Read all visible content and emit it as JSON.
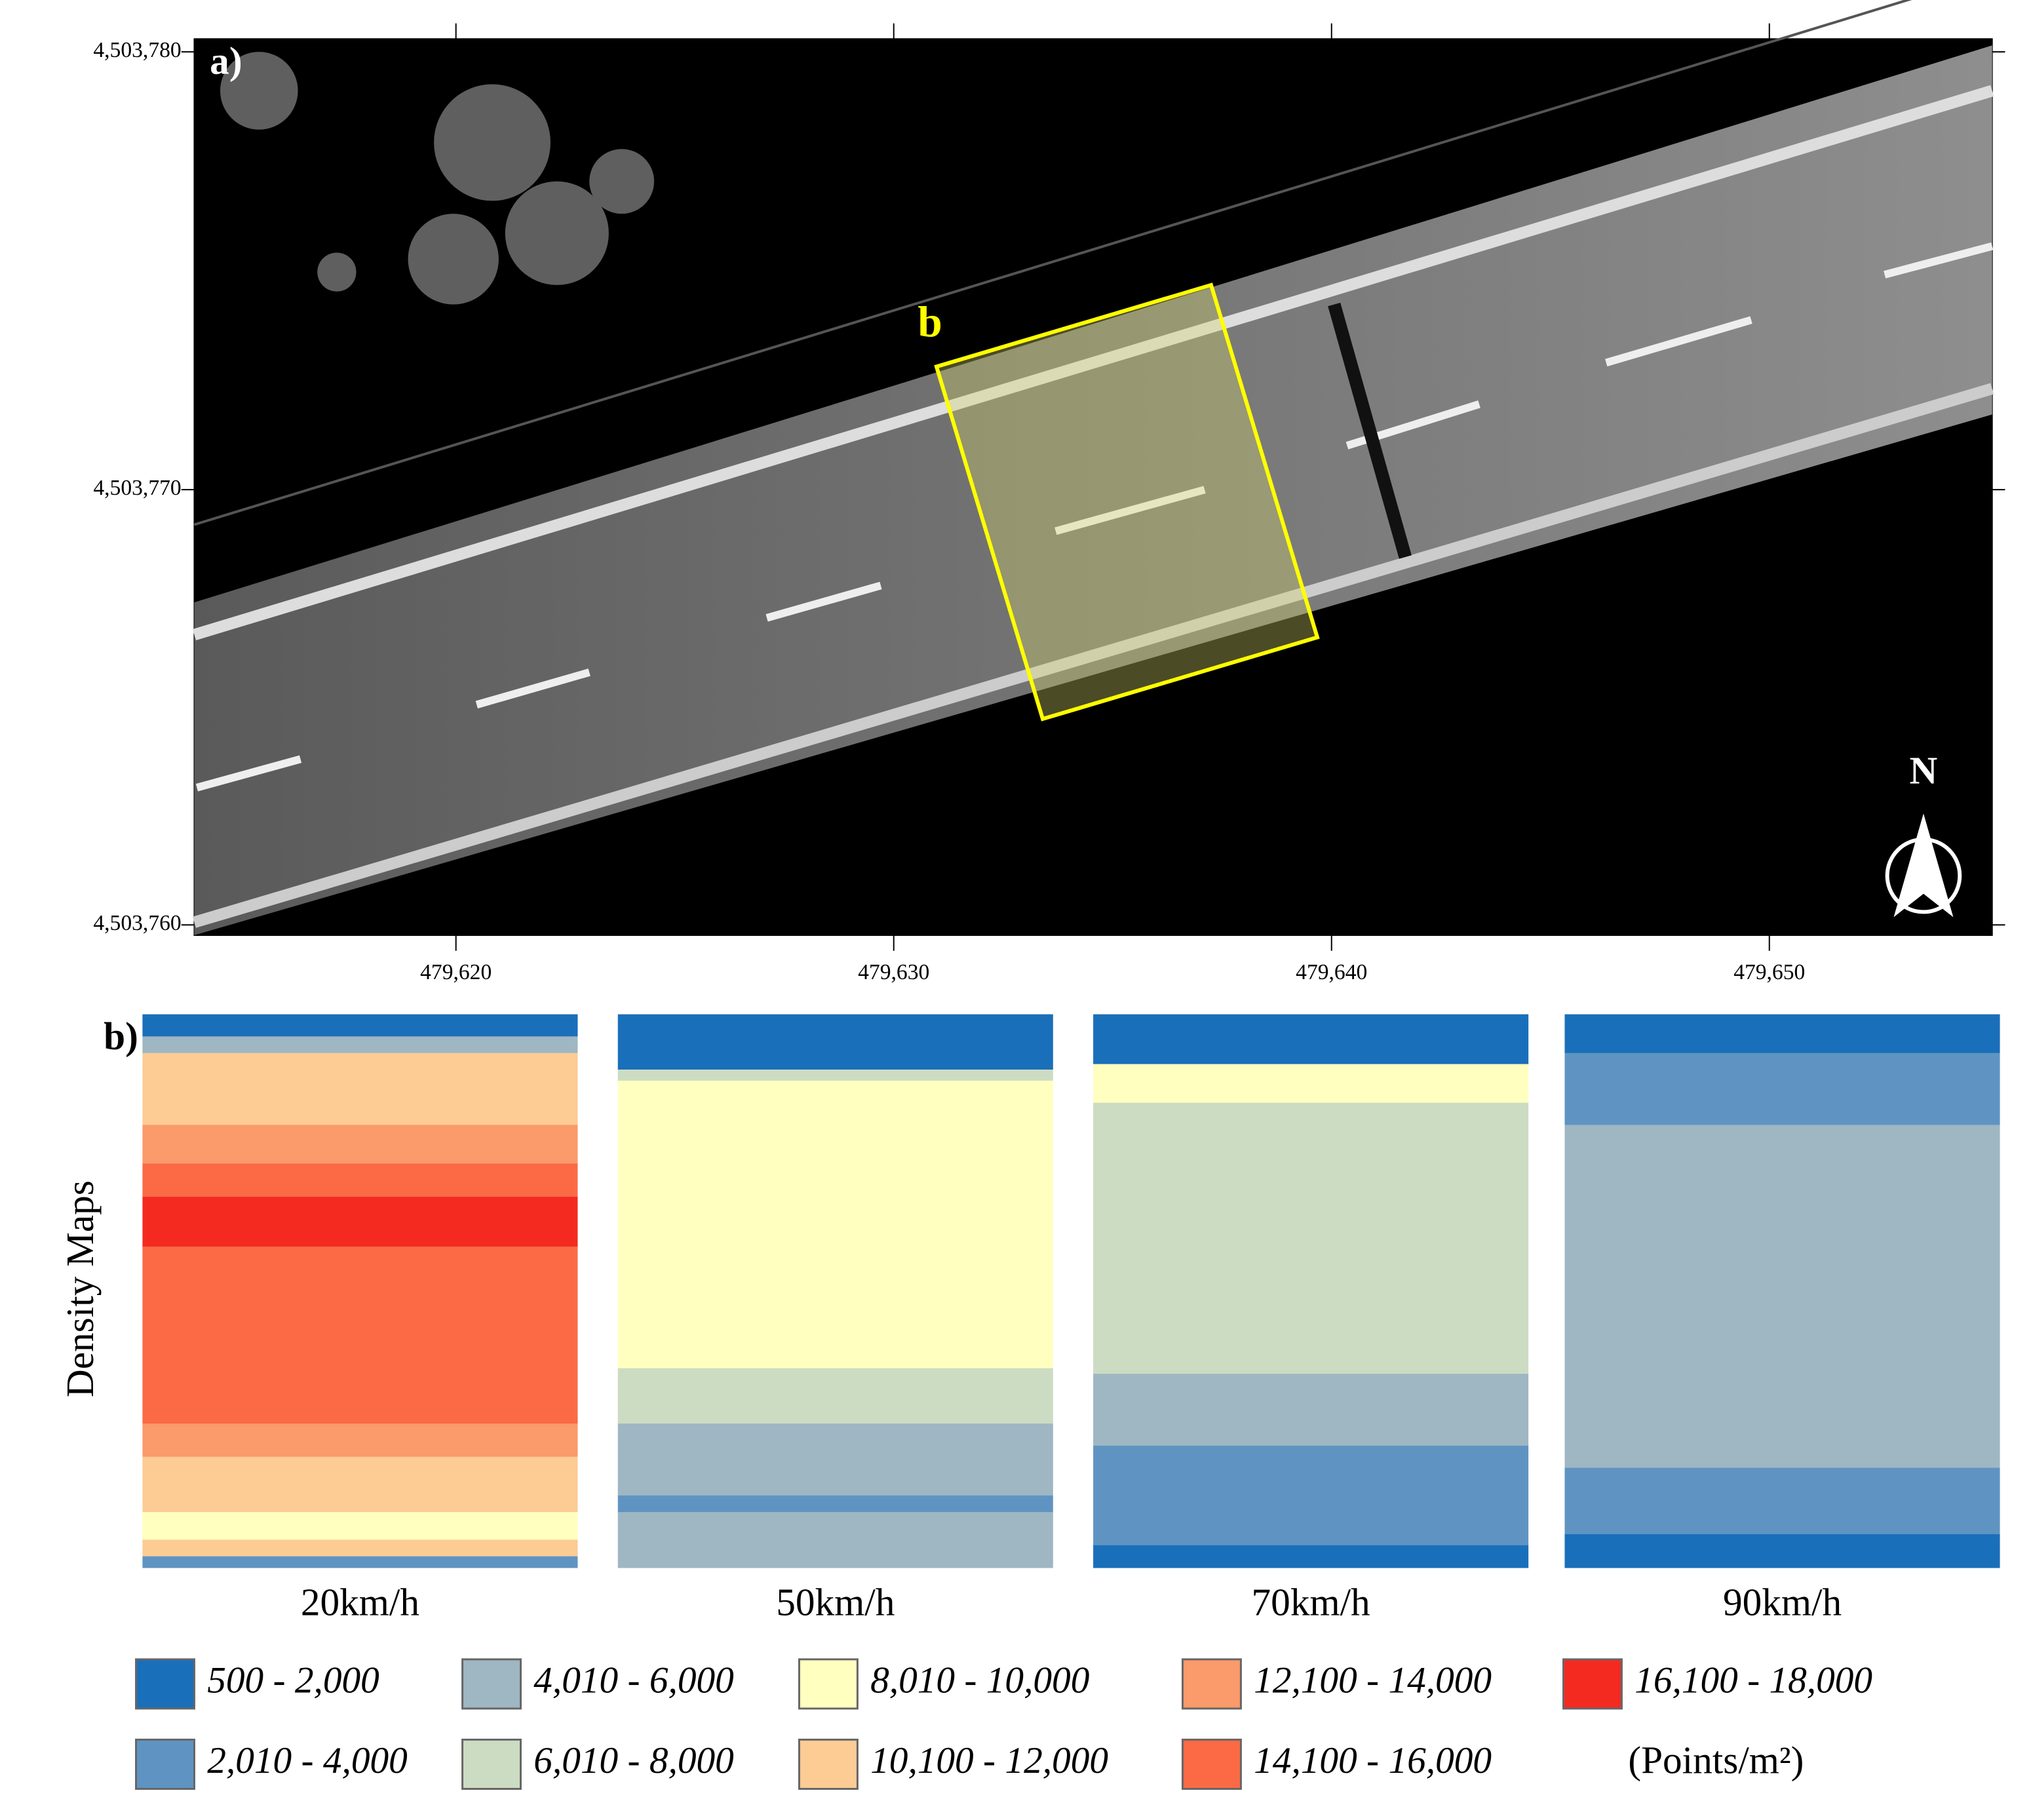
{
  "panel_a": {
    "label": "a)",
    "y_labels": [
      "4,503,780",
      "4,503,770",
      "4,503,760"
    ],
    "x_labels": [
      "479,620",
      "479,630",
      "479,640",
      "479,650"
    ],
    "box_label": "b",
    "north": "N"
  },
  "panel_b": {
    "label": "b)",
    "y_title": "Density Maps",
    "maps": [
      "20km/h",
      "50km/h",
      "70km/h",
      "90km/h"
    ],
    "legend": [
      {
        "label": "500 - 2,000",
        "color": "#1a6fba"
      },
      {
        "label": "2,010 - 4,000",
        "color": "#5f94c2"
      },
      {
        "label": "4,010 - 6,000",
        "color": "#9fb6c3"
      },
      {
        "label": "6,010 - 8,000",
        "color": "#ccdcc2"
      },
      {
        "label": "8,010 - 10,000",
        "color": "#ffffc0"
      },
      {
        "label": "10,100 - 12,000",
        "color": "#fdcb94"
      },
      {
        "label": "12,100 - 14,000",
        "color": "#fb9a6a"
      },
      {
        "label": "14,100 - 16,000",
        "color": "#fb6a45"
      },
      {
        "label": "16,100 - 18,000",
        "color": "#f42a21"
      }
    ],
    "unit": "(Points/m²)"
  }
}
